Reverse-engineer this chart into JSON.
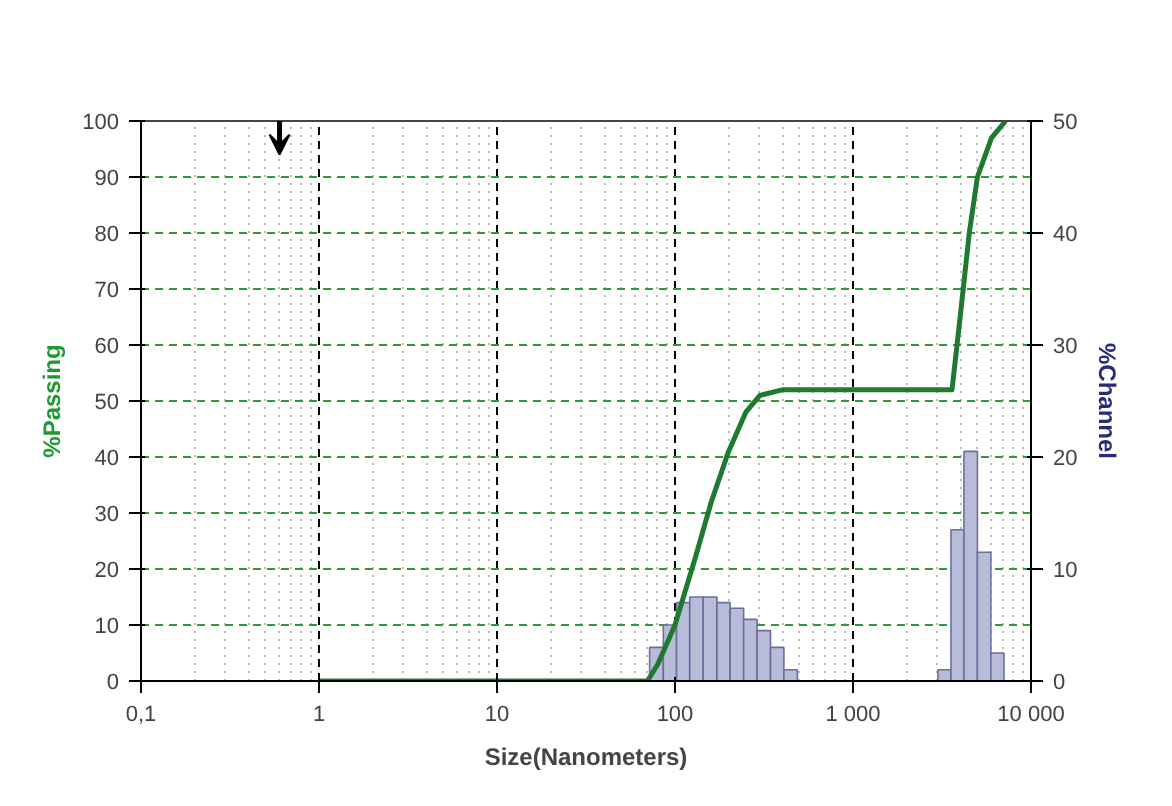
{
  "chart_data": {
    "type": "line",
    "xlabel": "Size(Nanometers)",
    "ylabel": "%Passing",
    "y2label": "%Channel",
    "log": "x",
    "grid": true,
    "xlim": [
      0.1,
      10000
    ],
    "xticks": [
      {
        "value": 0.1,
        "label": "0,1"
      },
      1,
      10,
      100,
      {
        "value": 1000,
        "label": "1 000"
      },
      {
        "value": 10000,
        "label": "10 000"
      }
    ],
    "ylim": [
      0,
      100
    ],
    "yticks": [
      0,
      10,
      20,
      30,
      40,
      50,
      60,
      70,
      80,
      90,
      100
    ],
    "y2lim": [
      0,
      50
    ],
    "y2ticks": [
      0,
      10,
      20,
      30,
      40,
      50
    ],
    "series": [
      {
        "type": "histogram",
        "axis": "y2",
        "color": "#b8bcd8",
        "bins": [
          72,
          86,
          102,
          121,
          144,
          172,
          204,
          243,
          289,
          344,
          409,
          487,
          3000,
          3550,
          4200,
          5000,
          5950,
          7050
        ],
        "values": [
          3,
          5,
          7,
          7.5,
          7.5,
          7,
          6.5,
          5.5,
          4.5,
          3,
          1,
          0,
          1,
          13.5,
          20.5,
          11.5,
          2.5
        ]
      },
      {
        "color": "#1e7a30",
        "x": [
          1,
          70,
          80,
          100,
          130,
          160,
          200,
          250,
          300,
          400,
          3600,
          4000,
          4500,
          5000,
          6000,
          7200
        ],
        "values": [
          0,
          0,
          3,
          10,
          22,
          32,
          41,
          48,
          51,
          52,
          52,
          65,
          80,
          90,
          97,
          100
        ]
      }
    ]
  }
}
